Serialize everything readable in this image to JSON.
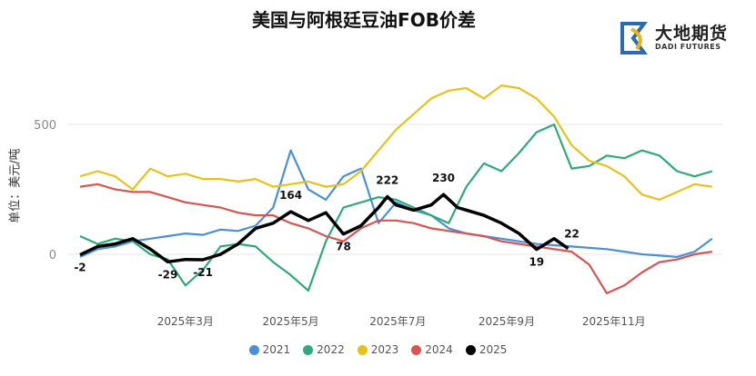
{
  "chart_data": {
    "type": "line",
    "title": "美国与阿根廷豆油FOB价差",
    "ylabel": "单位：美元/吨",
    "xlabel": "",
    "ylim": [
      -200,
      700
    ],
    "yticks": [
      0,
      500
    ],
    "xlim_day_of_year": [
      0,
      365
    ],
    "xticks": [
      {
        "day": 60,
        "label": "2025年3月"
      },
      {
        "day": 120,
        "label": "2025年5月"
      },
      {
        "day": 181,
        "label": "2025年7月"
      },
      {
        "day": 243,
        "label": "2025年9月"
      },
      {
        "day": 304,
        "label": "2025年11月"
      }
    ],
    "grid": "horizontal",
    "legend_position": "bottom",
    "series": [
      {
        "name": "2021",
        "color": "#4a90d9",
        "x_step": 10,
        "values": [
          -10,
          20,
          30,
          50,
          60,
          70,
          80,
          75,
          95,
          90,
          110,
          180,
          400,
          250,
          210,
          300,
          330,
          120,
          200,
          170,
          150,
          100,
          80,
          70,
          60,
          50,
          40,
          35,
          30,
          25,
          20,
          10,
          0,
          -5,
          -10,
          10,
          60
        ]
      },
      {
        "name": "2022",
        "color": "#2eaa7a",
        "x_step": 10,
        "values": [
          70,
          40,
          60,
          50,
          0,
          -20,
          -120,
          -60,
          30,
          40,
          30,
          -30,
          -80,
          -140,
          50,
          180,
          200,
          220,
          210,
          180,
          150,
          120,
          260,
          350,
          320,
          390,
          470,
          500,
          330,
          340,
          380,
          370,
          400,
          380,
          320,
          300,
          320
        ]
      },
      {
        "name": "2023",
        "color": "#e8c21a",
        "x_step": 10,
        "values": [
          300,
          320,
          300,
          250,
          330,
          300,
          310,
          290,
          290,
          280,
          290,
          260,
          270,
          280,
          260,
          270,
          320,
          400,
          480,
          540,
          600,
          630,
          640,
          600,
          650,
          640,
          600,
          530,
          420,
          360,
          340,
          300,
          230,
          210,
          240,
          270,
          260
        ]
      },
      {
        "name": "2024",
        "color": "#d9534f",
        "x_step": 10,
        "values": [
          260,
          270,
          250,
          240,
          240,
          220,
          200,
          190,
          180,
          160,
          150,
          150,
          120,
          100,
          70,
          50,
          100,
          130,
          130,
          120,
          100,
          90,
          80,
          70,
          50,
          40,
          30,
          20,
          10,
          -40,
          -150,
          -120,
          -70,
          -30,
          -20,
          0,
          10
        ]
      },
      {
        "name": "2025",
        "color": "#000000",
        "x": [
          0,
          10,
          20,
          30,
          40,
          50,
          60,
          70,
          80,
          90,
          100,
          110,
          120,
          130,
          140,
          150,
          160,
          170,
          175,
          180,
          190,
          200,
          207,
          215,
          230,
          240,
          250,
          260,
          270,
          278
        ],
        "values": [
          -2,
          30,
          40,
          60,
          20,
          -29,
          -20,
          -21,
          0,
          40,
          100,
          120,
          164,
          130,
          160,
          78,
          110,
          180,
          222,
          190,
          170,
          190,
          230,
          180,
          150,
          120,
          80,
          19,
          60,
          22
        ]
      }
    ],
    "annotations": [
      {
        "day": 0,
        "value": -2,
        "label": "-2"
      },
      {
        "day": 50,
        "value": -29,
        "label": "-29"
      },
      {
        "day": 70,
        "value": -21,
        "label": "-21"
      },
      {
        "day": 120,
        "value": 164,
        "label": "164"
      },
      {
        "day": 150,
        "value": 78,
        "label": "78"
      },
      {
        "day": 175,
        "value": 222,
        "label": "222"
      },
      {
        "day": 207,
        "value": 230,
        "label": "230"
      },
      {
        "day": 260,
        "value": 19,
        "label": "19"
      },
      {
        "day": 278,
        "value": 22,
        "label": "22"
      }
    ]
  },
  "logo": {
    "cn": "大地期货",
    "en": "DADI FUTURES"
  }
}
